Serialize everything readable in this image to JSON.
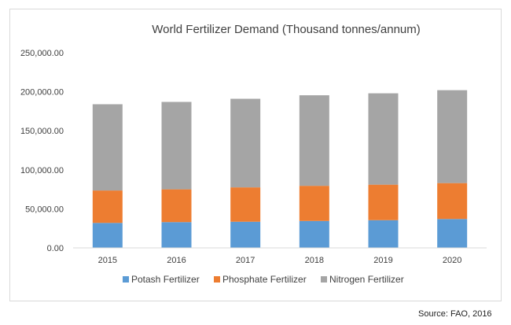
{
  "colors": {
    "potash": "#5b9bd5",
    "phosphate": "#ed7d31",
    "nitrogen": "#a5a5a5",
    "axis": "#d9d9d9",
    "text": "#404040"
  },
  "source": "Source: FAO, 2016",
  "chart_data": {
    "type": "bar",
    "stacked": true,
    "title": "World Fertilizer Demand (Thousand tonnes/annum)",
    "categories": [
      "2015",
      "2016",
      "2017",
      "2018",
      "2019",
      "2020"
    ],
    "series": [
      {
        "name": "Potash Fertilizer",
        "values": [
          32000,
          33000,
          33500,
          34500,
          35500,
          37000
        ]
      },
      {
        "name": "Phosphate Fertilizer",
        "values": [
          41500,
          42000,
          44000,
          45000,
          45500,
          46000
        ]
      },
      {
        "name": "Nitrogen Fertilizer",
        "values": [
          110500,
          112000,
          113500,
          116000,
          117000,
          119000
        ]
      }
    ],
    "ylim": [
      0,
      250000
    ],
    "y_ticks": [
      "0.00",
      "50,000.00",
      "100,000.00",
      "150,000.00",
      "200,000.00",
      "250,000.00"
    ],
    "grid": false,
    "legend_position": "bottom"
  }
}
